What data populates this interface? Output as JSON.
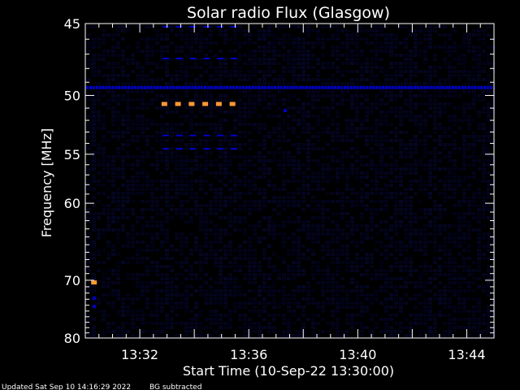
{
  "chart_data": {
    "type": "heatmap",
    "title": "Solar radio Flux (Glasgow)",
    "xlabel": "Start Time (10-Sep-22 13:30:00)",
    "ylabel": "Frequency [MHz]",
    "xlim": [
      "13:30:00",
      "13:45:00"
    ],
    "ylim": [
      45,
      80
    ],
    "x_tick_labels": [
      "13:32",
      "13:36",
      "13:40",
      "13:44"
    ],
    "y_tick_labels": [
      "45",
      "50",
      "55",
      "60",
      "70",
      "80"
    ],
    "y_ticks": [
      45,
      50,
      55,
      60,
      70,
      80
    ],
    "y_minor_ticks": [
      46,
      47,
      48,
      49,
      51,
      52,
      53,
      54,
      56,
      57,
      58,
      59,
      61,
      62,
      63,
      64,
      65,
      66,
      67,
      68,
      69,
      71,
      72,
      73,
      74,
      75,
      76,
      77,
      78,
      79
    ],
    "background_color": "#000000",
    "intensity_colors": {
      "weak": "#0000cc",
      "strong": "#ff9933"
    },
    "strong_emission": [
      {
        "time": "13:30:20",
        "frequency_mhz": 70.4
      },
      {
        "time": "13:32:55",
        "frequency_mhz": 50.7
      },
      {
        "time": "13:33:25",
        "frequency_mhz": 50.7
      },
      {
        "time": "13:33:55",
        "frequency_mhz": 50.7
      },
      {
        "time": "13:34:25",
        "frequency_mhz": 50.7
      },
      {
        "time": "13:34:55",
        "frequency_mhz": 50.7
      },
      {
        "time": "13:35:25",
        "frequency_mhz": 50.7
      }
    ],
    "weak_band_frequencies_mhz": [
      49.4,
      47.3,
      53.3,
      54.5,
      45.2
    ],
    "weak_band_time_range": [
      "13:32:50",
      "13:35:40"
    ]
  },
  "footer": {
    "updated": "Updated Sat Sep 10 14:16:29 2022",
    "mode": "BG subtracted"
  }
}
